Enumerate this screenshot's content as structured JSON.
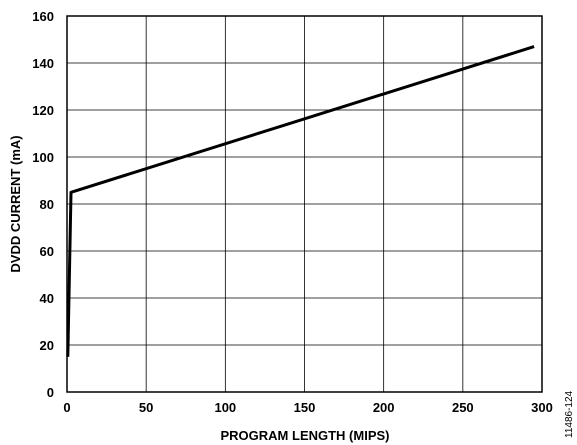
{
  "figure_id": "11486-124",
  "chart_data": {
    "type": "line",
    "title": "",
    "xlabel": "PROGRAM LENGTH (MIPS)",
    "ylabel": "DVDD CURRENT (mA)",
    "xlim": [
      0,
      300
    ],
    "ylim": [
      0,
      160
    ],
    "xticks": [
      "0",
      "50",
      "100",
      "150",
      "200",
      "250",
      "300"
    ],
    "yticks": [
      "0",
      "20",
      "40",
      "60",
      "80",
      "100",
      "120",
      "140",
      "160"
    ],
    "grid": true,
    "legend": "none",
    "line_color": "#000000",
    "series": [
      {
        "x": [
          0.5,
          2.5,
          295
        ],
        "y": [
          15,
          85,
          147
        ]
      }
    ]
  }
}
